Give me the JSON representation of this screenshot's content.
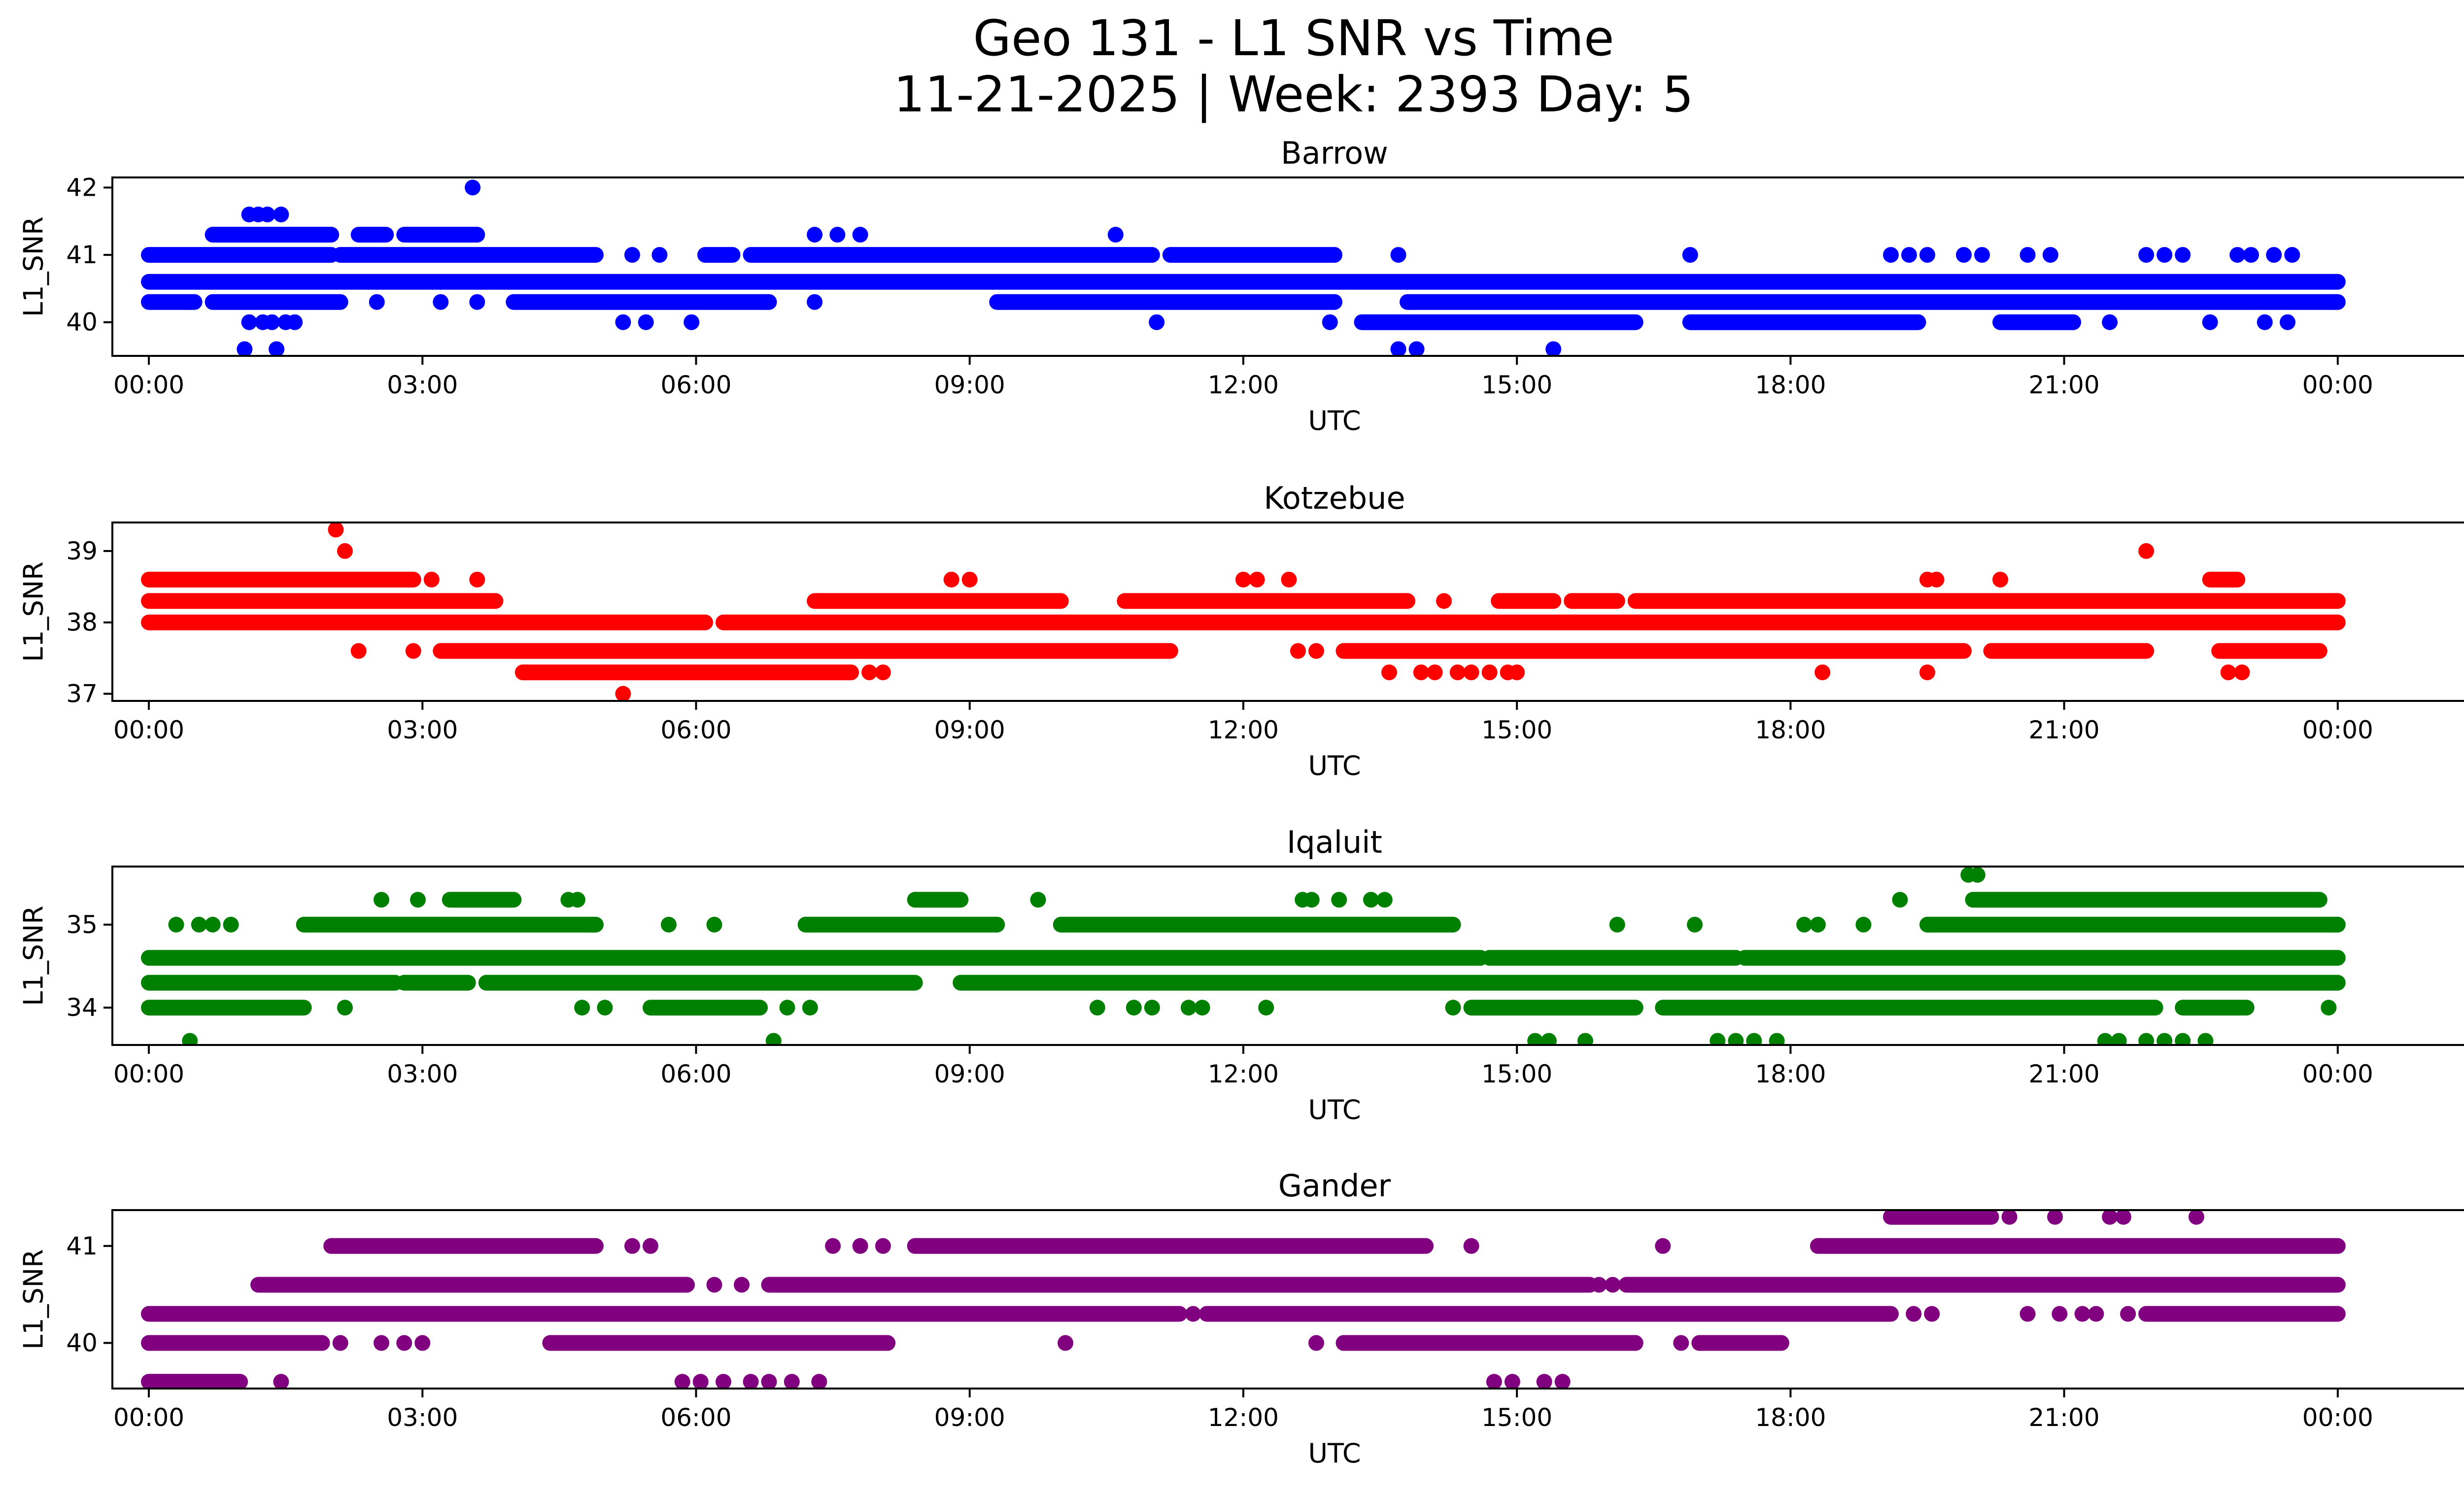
{
  "figure": {
    "title_line1": "Geo 131 - L1 SNR vs Time",
    "title_line2": "11-21-2025 | Week: 2393 Day: 5"
  },
  "chart_data": [
    {
      "type": "scatter",
      "title": "Barrow",
      "xlabel": "UTC",
      "ylabel": "L1_SNR",
      "color": "#0000ff",
      "xlim": [
        -0.4,
        26.4
      ],
      "ylim": [
        39.5,
        42.15
      ],
      "xticks": [
        0,
        3,
        6,
        9,
        12,
        15,
        18,
        21,
        24
      ],
      "xtick_labels": [
        "00:00",
        "03:00",
        "06:00",
        "09:00",
        "12:00",
        "15:00",
        "18:00",
        "21:00",
        "00:00"
      ],
      "yticks": [
        40,
        41,
        42
      ],
      "ytick_labels": [
        "40",
        "41",
        "42"
      ],
      "bands": [
        {
          "y": 40.6,
          "segments": [
            [
              0,
              24
            ]
          ]
        },
        {
          "y": 40.3,
          "segments": [
            [
              0,
              0.5
            ],
            [
              0.7,
              2.1
            ],
            [
              4.0,
              6.8
            ],
            [
              9.3,
              13.0
            ],
            [
              13.8,
              24
            ]
          ]
        },
        {
          "y": 40.0,
          "segments": [
            [
              13.3,
              16.3
            ],
            [
              16.9,
              19.4
            ],
            [
              20.3,
              21.1
            ]
          ]
        },
        {
          "y": 41.0,
          "segments": [
            [
              0,
              2.0
            ],
            [
              2.1,
              4.9
            ],
            [
              6.1,
              6.4
            ],
            [
              6.6,
              11.0
            ],
            [
              11.2,
              13.0
            ]
          ]
        },
        {
          "y": 41.3,
          "segments": [
            [
              0.7,
              2.0
            ],
            [
              2.3,
              2.6
            ],
            [
              2.8,
              3.6
            ]
          ]
        }
      ],
      "points": [
        [
          1.1,
          41.6
        ],
        [
          1.2,
          41.6
        ],
        [
          1.3,
          41.6
        ],
        [
          1.45,
          41.6
        ],
        [
          3.55,
          42.0
        ],
        [
          1.1,
          40.0
        ],
        [
          1.25,
          40.0
        ],
        [
          1.35,
          40.0
        ],
        [
          1.5,
          40.0
        ],
        [
          1.6,
          40.0
        ],
        [
          1.05,
          39.6
        ],
        [
          1.4,
          39.6
        ],
        [
          13.7,
          39.6
        ],
        [
          13.9,
          39.6
        ],
        [
          15.4,
          39.6
        ],
        [
          7.3,
          41.3
        ],
        [
          7.55,
          41.3
        ],
        [
          7.8,
          41.3
        ],
        [
          10.6,
          41.3
        ],
        [
          5.2,
          40.0
        ],
        [
          5.45,
          40.0
        ],
        [
          5.95,
          40.0
        ],
        [
          11.05,
          40.0
        ],
        [
          12.95,
          40.0
        ],
        [
          21.5,
          40.0
        ],
        [
          22.6,
          40.0
        ],
        [
          23.2,
          40.0
        ],
        [
          23.45,
          40.0
        ],
        [
          5.3,
          41.0
        ],
        [
          5.6,
          41.0
        ],
        [
          13.7,
          41.0
        ],
        [
          16.9,
          41.0
        ],
        [
          19.1,
          41.0
        ],
        [
          19.3,
          41.0
        ],
        [
          19.5,
          41.0
        ],
        [
          19.9,
          41.0
        ],
        [
          20.1,
          41.0
        ],
        [
          20.6,
          41.0
        ],
        [
          20.85,
          41.0
        ],
        [
          21.9,
          41.0
        ],
        [
          22.1,
          41.0
        ],
        [
          22.3,
          41.0
        ],
        [
          22.9,
          41.0
        ],
        [
          23.05,
          41.0
        ],
        [
          23.3,
          41.0
        ],
        [
          23.5,
          41.0
        ],
        [
          2.5,
          40.3
        ],
        [
          3.2,
          40.3
        ],
        [
          3.6,
          40.3
        ],
        [
          7.3,
          40.3
        ]
      ]
    },
    {
      "type": "scatter",
      "title": "Kotzebue",
      "xlabel": "UTC",
      "ylabel": "L1_SNR",
      "color": "#ff0000",
      "xlim": [
        -0.4,
        26.4
      ],
      "ylim": [
        36.9,
        39.4
      ],
      "xticks": [
        0,
        3,
        6,
        9,
        12,
        15,
        18,
        21,
        24
      ],
      "xtick_labels": [
        "00:00",
        "03:00",
        "06:00",
        "09:00",
        "12:00",
        "15:00",
        "18:00",
        "21:00",
        "00:00"
      ],
      "yticks": [
        37,
        38,
        39
      ],
      "ytick_labels": [
        "37",
        "38",
        "39"
      ],
      "bands": [
        {
          "y": 38.3,
          "segments": [
            [
              0,
              3.8
            ],
            [
              7.3,
              10.0
            ],
            [
              10.7,
              13.8
            ],
            [
              14.8,
              15.4
            ],
            [
              15.6,
              16.1
            ],
            [
              16.3,
              24
            ]
          ]
        },
        {
          "y": 38.0,
          "segments": [
            [
              0,
              6.1
            ],
            [
              6.3,
              24
            ]
          ]
        },
        {
          "y": 38.6,
          "segments": [
            [
              0,
              2.9
            ],
            [
              22.6,
              22.9
            ]
          ]
        },
        {
          "y": 37.6,
          "segments": [
            [
              3.2,
              11.2
            ],
            [
              13.1,
              19.9
            ],
            [
              20.2,
              21.9
            ],
            [
              22.7,
              23.8
            ]
          ]
        },
        {
          "y": 37.3,
          "segments": [
            [
              4.1,
              7.7
            ]
          ]
        }
      ],
      "points": [
        [
          2.05,
          39.3
        ],
        [
          2.15,
          39.0
        ],
        [
          21.9,
          39.0
        ],
        [
          3.1,
          38.6
        ],
        [
          3.6,
          38.6
        ],
        [
          8.8,
          38.6
        ],
        [
          9.0,
          38.6
        ],
        [
          12.0,
          38.6
        ],
        [
          12.15,
          38.6
        ],
        [
          12.5,
          38.6
        ],
        [
          19.5,
          38.6
        ],
        [
          19.6,
          38.6
        ],
        [
          20.3,
          38.6
        ],
        [
          22.85,
          38.6
        ],
        [
          2.3,
          37.6
        ],
        [
          2.9,
          37.6
        ],
        [
          12.6,
          37.6
        ],
        [
          12.8,
          37.6
        ],
        [
          7.9,
          37.3
        ],
        [
          8.05,
          37.3
        ],
        [
          13.6,
          37.3
        ],
        [
          13.95,
          37.3
        ],
        [
          14.1,
          37.3
        ],
        [
          14.35,
          37.3
        ],
        [
          14.7,
          37.3
        ],
        [
          14.9,
          37.3
        ],
        [
          15.0,
          37.3
        ],
        [
          18.35,
          37.3
        ],
        [
          19.5,
          37.3
        ],
        [
          22.8,
          37.3
        ],
        [
          22.95,
          37.3
        ],
        [
          5.2,
          37.0
        ],
        [
          14.5,
          37.3
        ],
        [
          14.2,
          38.3
        ]
      ]
    },
    {
      "type": "scatter",
      "title": "Iqaluit",
      "xlabel": "UTC",
      "ylabel": "L1_SNR",
      "color": "#008000",
      "xlim": [
        -0.4,
        26.4
      ],
      "ylim": [
        33.55,
        35.7
      ],
      "xticks": [
        0,
        3,
        6,
        9,
        12,
        15,
        18,
        21,
        24
      ],
      "xtick_labels": [
        "00:00",
        "03:00",
        "06:00",
        "09:00",
        "12:00",
        "15:00",
        "18:00",
        "21:00",
        "00:00"
      ],
      "yticks": [
        34,
        35
      ],
      "ytick_labels": [
        "34",
        "35"
      ],
      "bands": [
        {
          "y": 34.6,
          "segments": [
            [
              0,
              14.6
            ],
            [
              14.7,
              17.4
            ],
            [
              17.5,
              24
            ]
          ]
        },
        {
          "y": 34.3,
          "segments": [
            [
              0,
              2.7
            ],
            [
              2.8,
              3.5
            ],
            [
              3.7,
              8.4
            ],
            [
              8.9,
              24
            ]
          ]
        },
        {
          "y": 34.0,
          "segments": [
            [
              0,
              1.7
            ],
            [
              5.5,
              6.7
            ],
            [
              14.5,
              16.3
            ],
            [
              16.6,
              22.0
            ],
            [
              22.3,
              23.0
            ]
          ]
        },
        {
          "y": 35.0,
          "segments": [
            [
              1.7,
              4.9
            ],
            [
              7.2,
              9.3
            ],
            [
              10.0,
              14.3
            ],
            [
              19.5,
              24
            ]
          ]
        },
        {
          "y": 35.3,
          "segments": [
            [
              3.3,
              4.0
            ],
            [
              8.4,
              8.9
            ],
            [
              20.0,
              23.8
            ]
          ]
        }
      ],
      "points": [
        [
          2.55,
          35.3
        ],
        [
          2.95,
          35.3
        ],
        [
          4.6,
          35.3
        ],
        [
          4.7,
          35.3
        ],
        [
          12.65,
          35.3
        ],
        [
          12.75,
          35.3
        ],
        [
          13.05,
          35.3
        ],
        [
          13.4,
          35.3
        ],
        [
          13.55,
          35.3
        ],
        [
          9.75,
          35.3
        ],
        [
          19.2,
          35.3
        ],
        [
          19.95,
          35.6
        ],
        [
          20.05,
          35.6
        ],
        [
          0.3,
          35.0
        ],
        [
          0.55,
          35.0
        ],
        [
          0.7,
          35.0
        ],
        [
          0.9,
          35.0
        ],
        [
          5.7,
          35.0
        ],
        [
          6.2,
          35.0
        ],
        [
          16.1,
          35.0
        ],
        [
          16.95,
          35.0
        ],
        [
          18.15,
          35.0
        ],
        [
          18.3,
          35.0
        ],
        [
          18.8,
          35.0
        ],
        [
          2.15,
          34.0
        ],
        [
          4.75,
          34.0
        ],
        [
          5.0,
          34.0
        ],
        [
          7.0,
          34.0
        ],
        [
          7.25,
          34.0
        ],
        [
          10.4,
          34.0
        ],
        [
          10.8,
          34.0
        ],
        [
          11.0,
          34.0
        ],
        [
          11.4,
          34.0
        ],
        [
          11.55,
          34.0
        ],
        [
          12.25,
          34.0
        ],
        [
          14.3,
          34.0
        ],
        [
          23.9,
          34.0
        ],
        [
          0.45,
          33.6
        ],
        [
          6.85,
          33.6
        ],
        [
          15.2,
          33.6
        ],
        [
          15.35,
          33.6
        ],
        [
          15.75,
          33.6
        ],
        [
          17.2,
          33.6
        ],
        [
          17.4,
          33.6
        ],
        [
          17.6,
          33.6
        ],
        [
          17.85,
          33.6
        ],
        [
          21.45,
          33.6
        ],
        [
          21.6,
          33.6
        ],
        [
          21.9,
          33.6
        ],
        [
          22.1,
          33.6
        ],
        [
          22.3,
          33.6
        ],
        [
          22.55,
          33.6
        ]
      ]
    },
    {
      "type": "scatter",
      "title": "Gander",
      "xlabel": "UTC",
      "ylabel": "L1_SNR",
      "color": "#800080",
      "xlim": [
        -0.4,
        26.4
      ],
      "ylim": [
        39.53,
        41.37
      ],
      "xticks": [
        0,
        3,
        6,
        9,
        12,
        15,
        18,
        21,
        24
      ],
      "xtick_labels": [
        "00:00",
        "03:00",
        "06:00",
        "09:00",
        "12:00",
        "15:00",
        "18:00",
        "21:00",
        "00:00"
      ],
      "yticks": [
        40,
        41
      ],
      "ytick_labels": [
        "40",
        "41"
      ],
      "bands": [
        {
          "y": 40.3,
          "segments": [
            [
              0,
              11.3
            ],
            [
              11.6,
              19.1
            ],
            [
              21.9,
              24
            ]
          ]
        },
        {
          "y": 40.6,
          "segments": [
            [
              1.2,
              5.9
            ],
            [
              6.8,
              15.8
            ],
            [
              16.2,
              24
            ]
          ]
        },
        {
          "y": 41.0,
          "segments": [
            [
              2.0,
              4.9
            ],
            [
              8.4,
              14.0
            ],
            [
              18.3,
              24
            ]
          ]
        },
        {
          "y": 40.0,
          "segments": [
            [
              0,
              1.9
            ],
            [
              4.4,
              8.1
            ],
            [
              13.1,
              16.3
            ],
            [
              17.0,
              17.9
            ]
          ]
        },
        {
          "y": 39.6,
          "segments": [
            [
              0,
              1.0
            ]
          ]
        },
        {
          "y": 41.3,
          "segments": [
            [
              19.1,
              20.2
            ]
          ]
        }
      ],
      "points": [
        [
          5.3,
          41.0
        ],
        [
          5.5,
          41.0
        ],
        [
          7.5,
          41.0
        ],
        [
          7.8,
          41.0
        ],
        [
          8.05,
          41.0
        ],
        [
          14.5,
          41.0
        ],
        [
          16.6,
          41.0
        ],
        [
          2.1,
          40.0
        ],
        [
          2.55,
          40.0
        ],
        [
          2.8,
          40.0
        ],
        [
          3.0,
          40.0
        ],
        [
          10.05,
          40.0
        ],
        [
          12.8,
          40.0
        ],
        [
          16.8,
          40.0
        ],
        [
          1.45,
          39.6
        ],
        [
          5.85,
          39.6
        ],
        [
          6.05,
          39.6
        ],
        [
          6.3,
          39.6
        ],
        [
          6.6,
          39.6
        ],
        [
          6.8,
          39.6
        ],
        [
          7.05,
          39.6
        ],
        [
          7.35,
          39.6
        ],
        [
          14.75,
          39.6
        ],
        [
          14.95,
          39.6
        ],
        [
          15.3,
          39.6
        ],
        [
          15.5,
          39.6
        ],
        [
          20.4,
          41.3
        ],
        [
          20.9,
          41.3
        ],
        [
          21.5,
          41.3
        ],
        [
          21.65,
          41.3
        ],
        [
          22.45,
          41.3
        ],
        [
          19.35,
          40.3
        ],
        [
          19.55,
          40.3
        ],
        [
          20.6,
          40.3
        ],
        [
          20.95,
          40.3
        ],
        [
          21.2,
          40.3
        ],
        [
          21.35,
          40.3
        ],
        [
          21.7,
          40.3
        ],
        [
          15.9,
          40.6
        ],
        [
          16.05,
          40.6
        ],
        [
          6.2,
          40.6
        ],
        [
          6.5,
          40.6
        ],
        [
          11.45,
          40.3
        ]
      ]
    }
  ]
}
